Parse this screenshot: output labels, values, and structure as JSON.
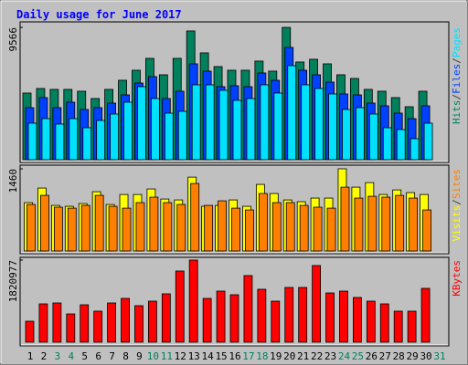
{
  "legend_separator": "/",
  "chart_data": [
    {
      "type": "bar",
      "title": "Daily usage for June 2017",
      "ylim": [
        0,
        9566
      ],
      "yticks": [
        9566
      ],
      "series": [
        {
          "name": "Hits",
          "color": "#00805c",
          "values": [
            4818,
            5148,
            5082,
            5082,
            4950,
            4422,
            5082,
            5742,
            6468,
            7326,
            6138,
            7326,
            9306,
            7722,
            6732,
            6468,
            6468,
            7128,
            6402,
            9566,
            7062,
            7260,
            6930,
            6138,
            5874,
            5082,
            4950,
            4488,
            3828,
            4950,
            null
          ]
        },
        {
          "name": "Files",
          "color": "#0040ff",
          "values": [
            3762,
            4488,
            3762,
            4158,
            3630,
            3762,
            4092,
            4686,
            5544,
            6006,
            4422,
            4950,
            6930,
            6402,
            5280,
            5346,
            5280,
            6270,
            5742,
            8118,
            6468,
            6138,
            5610,
            4752,
            4686,
            4092,
            3894,
            3366,
            2970,
            3894,
            null
          ]
        },
        {
          "name": "Pages",
          "color": "#00e0ff",
          "values": [
            2640,
            2970,
            2574,
            2970,
            2310,
            2838,
            3300,
            4158,
            5280,
            4422,
            3366,
            3498,
            5412,
            5412,
            5016,
            4290,
            4422,
            5412,
            4818,
            6798,
            5412,
            5148,
            4752,
            3630,
            3762,
            3300,
            2310,
            2178,
            1518,
            2640,
            null
          ]
        }
      ]
    },
    {
      "type": "bar",
      "ylim": [
        0,
        1460
      ],
      "yticks": [
        1460
      ],
      "series": [
        {
          "name": "Visits",
          "color": "#ffff00",
          "values": [
            859,
            1118,
            810,
            794,
            842,
            1053,
            826,
            1004,
            1004,
            1102,
            923,
            907,
            1312,
            794,
            810,
            907,
            794,
            1183,
            1021,
            907,
            875,
            940,
            940,
            1460,
            1134,
            1215,
            1004,
            1085,
            1037,
            1004,
            null
          ]
        },
        {
          "name": "Sites",
          "color": "#ff8000",
          "values": [
            826,
            988,
            778,
            761,
            810,
            988,
            794,
            761,
            859,
            956,
            859,
            826,
            1199,
            810,
            891,
            761,
            729,
            1021,
            859,
            859,
            810,
            778,
            761,
            1134,
            940,
            972,
            956,
            988,
            940,
            729,
            null
          ]
        }
      ]
    },
    {
      "type": "bar",
      "ylim": [
        0,
        1820977
      ],
      "yticks": [
        1820977
      ],
      "categories": [
        "1",
        "2",
        "3",
        "4",
        "5",
        "6",
        "7",
        "8",
        "9",
        "10",
        "11",
        "12",
        "13",
        "14",
        "15",
        "16",
        "17",
        "18",
        "19",
        "20",
        "21",
        "22",
        "23",
        "24",
        "25",
        "26",
        "27",
        "28",
        "29",
        "30",
        "31"
      ],
      "highlight_categories": [
        "3",
        "4",
        "10",
        "11",
        "17",
        "18",
        "24",
        "25",
        "31"
      ],
      "highlight_color": "#00805c",
      "series": [
        {
          "name": "KBytes",
          "color": "#ff0000",
          "values": [
            465359,
            849786,
            870019,
            627223,
            829553,
            687922,
            870019,
            971184,
            809320,
            910485,
            1072349,
            1578174,
            1820977,
            971184,
            1133048,
            1052116,
            1477009,
            1173514,
            910485,
            1213980,
            1213980,
            1699572,
            1092582,
            1133048,
            991417,
            910485,
            849786,
            687922,
            687922,
            1193747,
            null
          ]
        }
      ]
    }
  ]
}
